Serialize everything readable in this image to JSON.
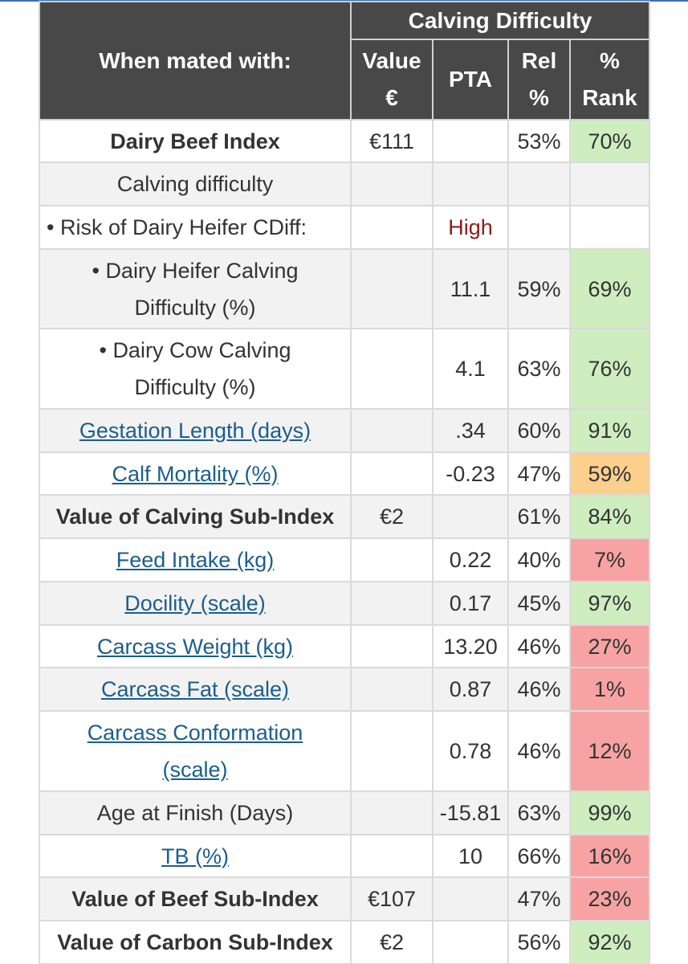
{
  "header": {
    "mated_with": "When mated with:",
    "group_title": "Calving Difficulty",
    "col_value_line1": "Value",
    "col_value_line2": "€",
    "col_pta": "PTA",
    "col_rel_line1": "Rel",
    "col_rel_line2": "%",
    "col_rank_line1": "%",
    "col_rank_line2": "Rank"
  },
  "rows": [
    {
      "label": "Dairy Beef Index",
      "value": "€111",
      "pta": "",
      "rel": "53%",
      "rank": "70%"
    },
    {
      "label": "Calving difficulty",
      "value": "",
      "pta": "",
      "rel": "",
      "rank": ""
    },
    {
      "label": "• Risk of Dairy Heifer CDiff:",
      "value": "",
      "pta": "High",
      "rel": "",
      "rank": ""
    },
    {
      "label_line1": "• Dairy Heifer Calving",
      "label_line2": "Difficulty (%)",
      "value": "",
      "pta": "11.1",
      "rel": "59%",
      "rank": "69%"
    },
    {
      "label_line1": "• Dairy Cow Calving",
      "label_line2": "Difficulty (%)",
      "value": "",
      "pta": "4.1",
      "rel": "63%",
      "rank": "76%"
    },
    {
      "label": "Gestation Length (days)",
      "value": "",
      "pta": ".34",
      "rel": "60%",
      "rank": "91%"
    },
    {
      "label": "Calf Mortality (%)",
      "value": "",
      "pta": "-0.23",
      "rel": "47%",
      "rank": "59%"
    },
    {
      "label": "Value of Calving Sub-Index",
      "value": "€2",
      "pta": "",
      "rel": "61%",
      "rank": "84%"
    },
    {
      "label": "Feed Intake (kg)",
      "value": "",
      "pta": "0.22",
      "rel": "40%",
      "rank": "7%"
    },
    {
      "label": "Docility (scale)",
      "value": "",
      "pta": "0.17",
      "rel": "45%",
      "rank": "97%"
    },
    {
      "label": "Carcass Weight (kg)",
      "value": "",
      "pta": "13.20",
      "rel": "46%",
      "rank": "27%"
    },
    {
      "label": "Carcass Fat (scale)",
      "value": "",
      "pta": "0.87",
      "rel": "46%",
      "rank": "1%"
    },
    {
      "label_line1": "Carcass Conformation",
      "label_line2": "(scale)",
      "value": "",
      "pta": "0.78",
      "rel": "46%",
      "rank": "12%"
    },
    {
      "label": "Age at Finish (Days)",
      "value": "",
      "pta": "-15.81",
      "rel": "63%",
      "rank": "99%"
    },
    {
      "label": "TB (%)",
      "value": "",
      "pta": "10",
      "rel": "66%",
      "rank": "16%"
    },
    {
      "label": "Value of Beef Sub-Index",
      "value": "€107",
      "pta": "",
      "rel": "47%",
      "rank": "23%"
    },
    {
      "label": "Value of Carbon Sub-Index",
      "value": "€2",
      "pta": "",
      "rel": "56%",
      "rank": "92%"
    }
  ],
  "colors": {
    "header_bg": "#484848",
    "rank_green": "#cfeec0",
    "rank_orange": "#fbcf8c",
    "rank_red": "#f7a3a3",
    "link": "#1b5e8c",
    "high": "#8b1d1d"
  }
}
